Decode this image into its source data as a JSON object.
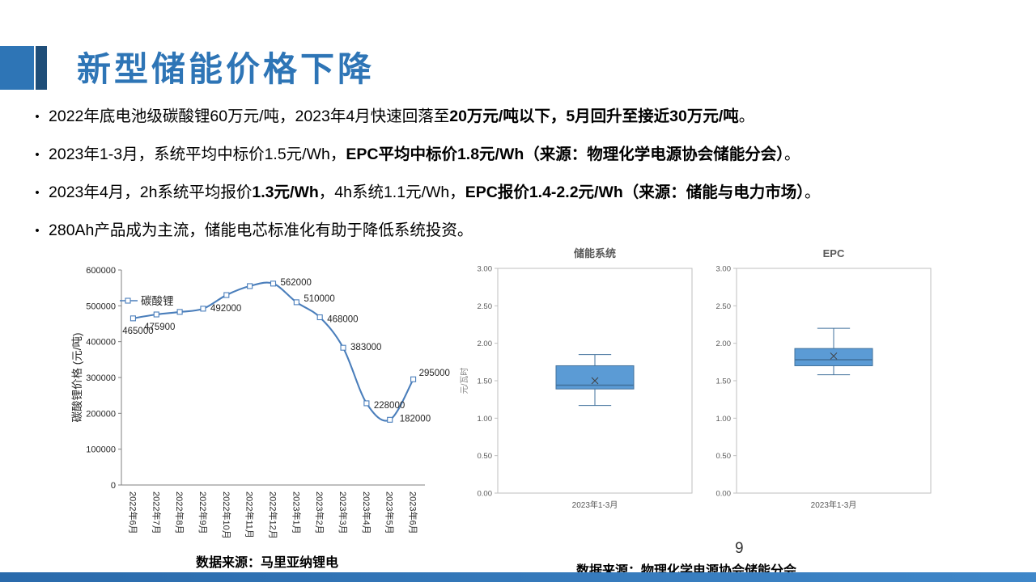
{
  "slide": {
    "title": "新型储能价格下降",
    "page_number": "9"
  },
  "bullets": [
    {
      "segments": [
        {
          "text": "2022年底电池级碳酸锂60万元/吨，2023年4月快速回落至",
          "bold": false
        },
        {
          "text": "20万元/吨以下，5月回升至接近30万元/吨",
          "bold": true
        },
        {
          "text": "。",
          "bold": false
        }
      ]
    },
    {
      "segments": [
        {
          "text": "2023年1-3月，系统平均中标价1.5元/Wh，",
          "bold": false
        },
        {
          "text": "EPC平均中标价1.8元/Wh（来源：物理化学电源协会储能分会）",
          "bold": true
        },
        {
          "text": "。",
          "bold": false
        }
      ]
    },
    {
      "segments": [
        {
          "text": "2023年4月，2h系统平均报价",
          "bold": false
        },
        {
          "text": "1.3元/Wh",
          "bold": true
        },
        {
          "text": "，4h系统1.1元/Wh，",
          "bold": false
        },
        {
          "text": "EPC报价1.4-2.2元/Wh（来源：储能与电力市场）",
          "bold": true
        },
        {
          "text": "。",
          "bold": false
        }
      ]
    },
    {
      "segments": [
        {
          "text": "280Ah产品成为主流，储能电芯标准化有助于降低系统投资。",
          "bold": false
        }
      ]
    }
  ],
  "chart_data": [
    {
      "type": "line",
      "title": "",
      "ylabel": "碳酸锂价格 (元/吨)",
      "ylim": [
        0,
        600000
      ],
      "ytick": 100000,
      "legend_position": "inside-top-left",
      "grid": false,
      "categories": [
        "2022年6月",
        "2022年7月",
        "2022年8月",
        "2022年9月",
        "2022年10月",
        "2022年11月",
        "2022年12月",
        "2023年1月",
        "2023年2月",
        "2023年3月",
        "2023年4月",
        "2023年5月",
        "2023年6月"
      ],
      "series": [
        {
          "name": "碳酸锂",
          "values": [
            465000,
            475900,
            483000,
            492000,
            530000,
            555000,
            562000,
            510000,
            468000,
            383000,
            228000,
            182000,
            295000
          ],
          "labels": [
            "465000",
            "475900",
            null,
            "492000",
            null,
            null,
            "562000",
            "510000",
            "468000",
            "383000",
            "228000",
            "182000",
            "295000"
          ]
        }
      ]
    },
    {
      "type": "box",
      "title": "储能系统",
      "ylabel": "元/瓦时",
      "ylim": [
        0,
        3
      ],
      "ytick": 0.5,
      "categories": [
        "2023年1-3月"
      ],
      "box": {
        "whisker_low": 1.17,
        "q1": 1.39,
        "median": 1.44,
        "mean": 1.5,
        "q3": 1.7,
        "whisker_high": 1.85
      }
    },
    {
      "type": "box",
      "title": "EPC",
      "ylabel": "",
      "ylim": [
        0,
        3
      ],
      "ytick": 0.5,
      "categories": [
        "2023年1-3月"
      ],
      "box": {
        "whisker_low": 1.58,
        "q1": 1.7,
        "median": 1.78,
        "mean": 1.83,
        "q3": 1.93,
        "whisker_high": 2.2
      }
    }
  ],
  "sources": {
    "left": "数据来源：马里亚纳锂电",
    "right": "数据来源：物理化学电源协会储能分会"
  },
  "colors": {
    "accent": "#2E75B6",
    "accent_dark": "#1F4E79",
    "series_line": "#4A7EBB",
    "box_fill": "#5B9BD5",
    "box_stroke": "#41719C",
    "muted_text": "#595959",
    "axis": "#808080"
  }
}
